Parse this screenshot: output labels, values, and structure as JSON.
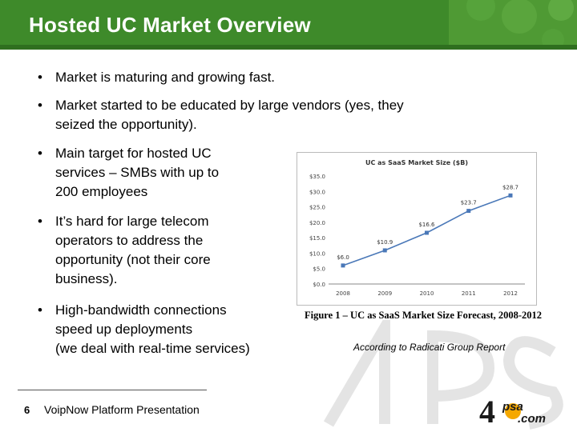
{
  "slide": {
    "title": "Hosted UC Market Overview",
    "bullets": [
      "Market is maturing and growing fast.",
      "Market started to be educated by large vendors (yes, they seized the opportunity).",
      "Main target for hosted UC services – SMBs with up to 200 employees",
      "It’s hard for large telecom operators to address the opportunity (not their core business).",
      "High-bandwidth connections speed up deployments (we deal with real-time services)"
    ],
    "bullet_lines": [
      [
        "Market is maturing and growing fast."
      ],
      [
        "Market started to be educated by large vendors (yes, they",
        "seized the opportunity)."
      ],
      [
        "Main target for hosted UC",
        "services – SMBs with up to",
        "200 employees"
      ],
      [
        "It’s hard for large telecom",
        "operators to address the",
        "opportunity (not their core",
        "business)."
      ],
      [
        "High-bandwidth connections",
        "speed up deployments",
        "(we deal with real-time services)"
      ]
    ],
    "bullet_symbol": "•",
    "figure_caption": "Figure 1 – UC as SaaS Market Size Forecast, 2008-2012",
    "source_note": "According to Radicati Group Report",
    "footer": {
      "page_number": "6",
      "text": "VoipNow Platform Presentation"
    },
    "logo": {
      "main": "4",
      "brand": "psa",
      "domain": ".com"
    },
    "colors": {
      "header": "#3e8a2a",
      "line": "#4a78b8"
    }
  },
  "chart_data": {
    "type": "line",
    "title": "UC as SaaS Market Size ($B)",
    "categories": [
      "2008",
      "2009",
      "2010",
      "2011",
      "2012"
    ],
    "series": [
      {
        "values": [
          6.0,
          10.9,
          16.6,
          23.7,
          28.7
        ]
      }
    ],
    "data_labels": [
      "$6.0",
      "$10.9",
      "$16.6",
      "$23.7",
      "$28.7"
    ],
    "y_ticks": [
      "$0.0",
      "$5.0",
      "$10.0",
      "$15.0",
      "$20.0",
      "$25.0",
      "$30.0",
      "$35.0"
    ],
    "ylim": [
      0,
      35
    ],
    "grid": false
  }
}
